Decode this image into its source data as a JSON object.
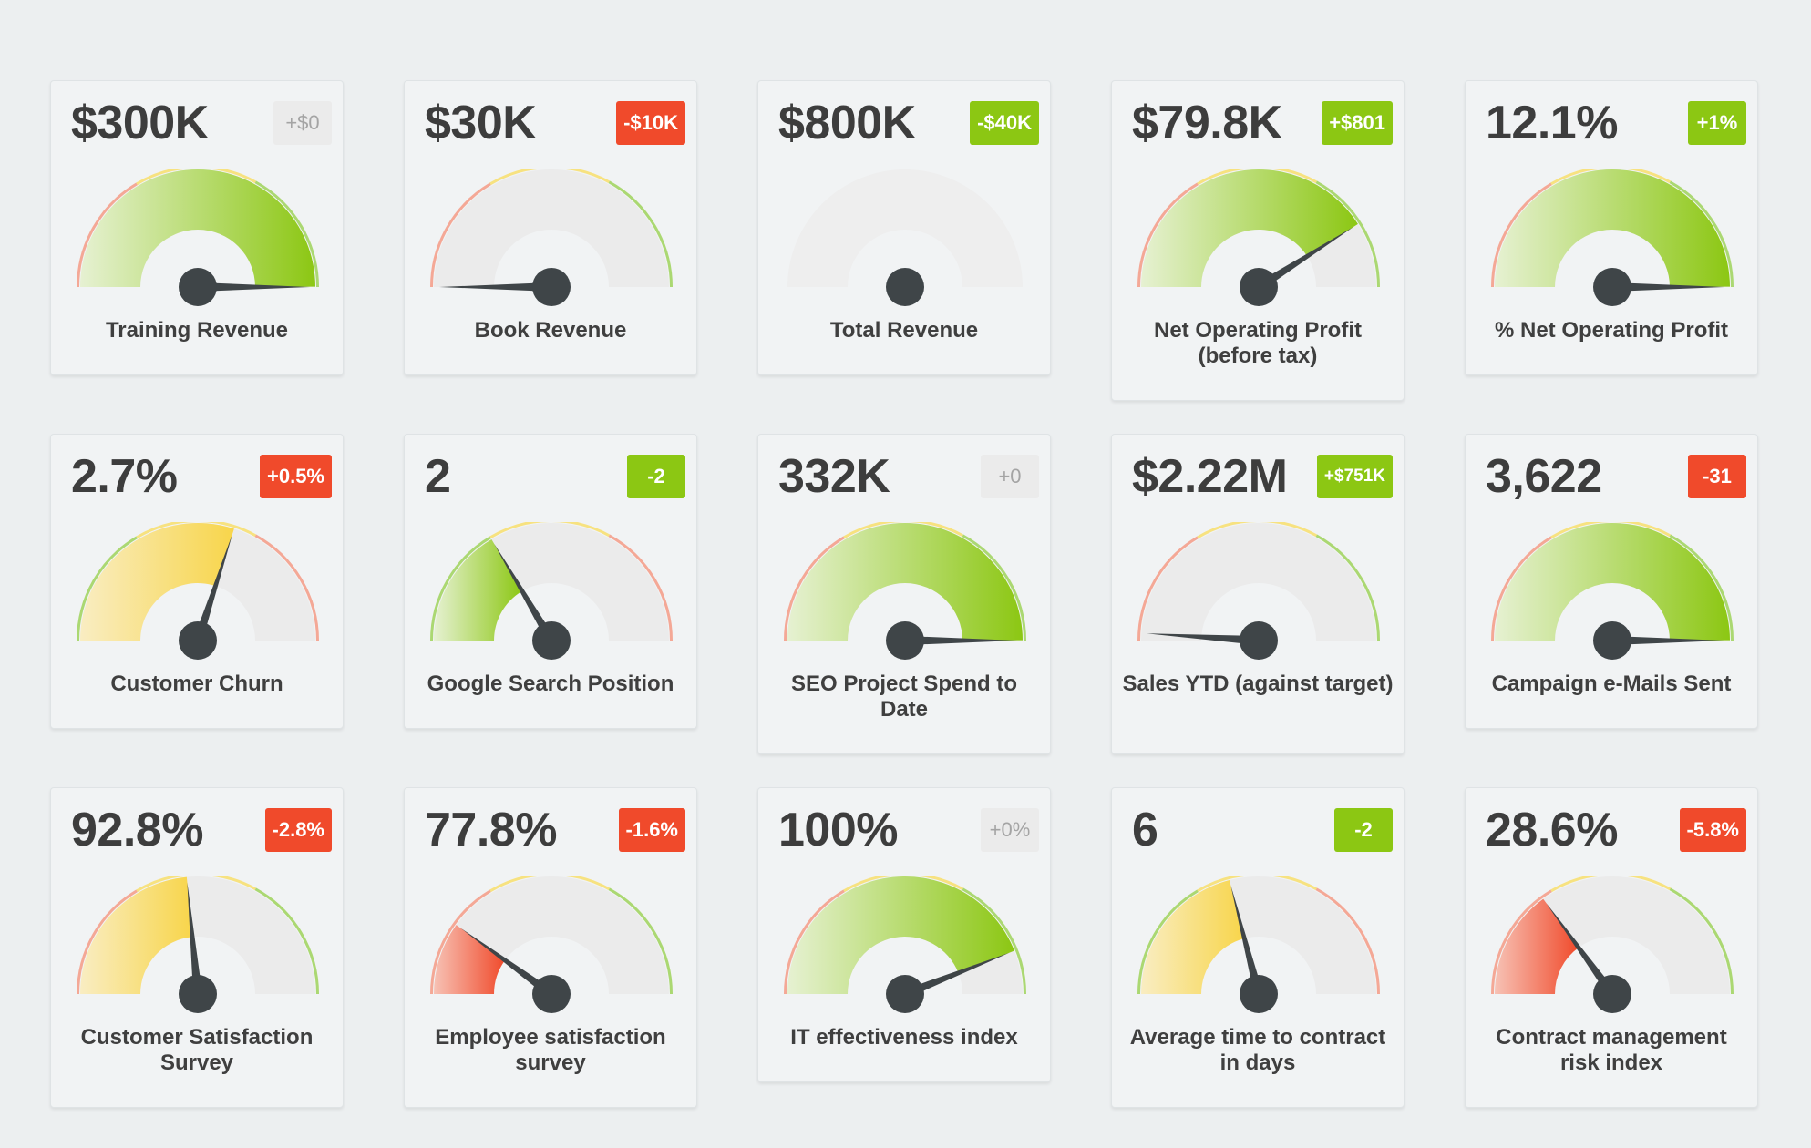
{
  "colors": {
    "green": "#8cc713",
    "red": "#f04a2b",
    "yellow": "#f8d94f",
    "track": "#ebebeb",
    "needle": "#3f4548"
  },
  "cards": [
    {
      "value": "$300K",
      "badge": "+$0",
      "badge_status": "neutral",
      "label": "Training Revenue",
      "level": 1.0,
      "fill": "green",
      "scale": "normal"
    },
    {
      "value": "$30K",
      "badge": "-$10K",
      "badge_status": "down",
      "label": "Book Revenue",
      "level": 0.0,
      "fill": "none",
      "scale": "normal"
    },
    {
      "value": "$800K",
      "badge": "-$40K",
      "badge_status": "up",
      "label": "Total Revenue",
      "level": null,
      "fill": "none",
      "scale": "disabled"
    },
    {
      "value": "$79.8K",
      "badge": "+$801",
      "badge_status": "up",
      "label": "Net Operating Profit (before tax)",
      "level": 0.82,
      "fill": "green",
      "scale": "normal"
    },
    {
      "value": "12.1%",
      "badge": "+1%",
      "badge_status": "up",
      "label": "% Net Operating Profit",
      "level": 1.0,
      "fill": "green",
      "scale": "normal"
    },
    {
      "value": "2.7%",
      "badge": "+0.5%",
      "badge_status": "down",
      "label": "Customer Churn",
      "level": 0.6,
      "fill": "yellow",
      "scale": "reverse"
    },
    {
      "value": "2",
      "badge": "-2",
      "badge_status": "up",
      "label": "Google Search Position",
      "level": 0.33,
      "fill": "green",
      "scale": "reverse"
    },
    {
      "value": "332K",
      "badge": "+0",
      "badge_status": "neutral",
      "label": "SEO Project Spend to Date",
      "level": 1.0,
      "fill": "green",
      "scale": "normal"
    },
    {
      "value": "$2.22M",
      "badge": "+$751K",
      "badge_status": "up",
      "label": "Sales YTD (against target)",
      "level": 0.02,
      "fill": "none",
      "scale": "normal"
    },
    {
      "value": "3,622",
      "badge": "-31",
      "badge_status": "down",
      "label": "Campaign e-Mails Sent",
      "level": 1.0,
      "fill": "green",
      "scale": "normal"
    },
    {
      "value": "92.8%",
      "badge": "-2.8%",
      "badge_status": "down",
      "label": "Customer Satisfaction Survey",
      "level": 0.47,
      "fill": "yellow",
      "scale": "normal"
    },
    {
      "value": "77.8%",
      "badge": "-1.6%",
      "badge_status": "down",
      "label": "Employee satisfaction survey",
      "level": 0.2,
      "fill": "red",
      "scale": "normal"
    },
    {
      "value": "100%",
      "badge": "+0%",
      "badge_status": "neutral",
      "label": "IT effectiveness index",
      "level": 0.88,
      "fill": "green",
      "scale": "normal"
    },
    {
      "value": "6",
      "badge": "-2",
      "badge_status": "up",
      "label": "Average time to contract in days",
      "level": 0.42,
      "fill": "yellow",
      "scale": "reverse"
    },
    {
      "value": "28.6%",
      "badge": "-5.8%",
      "badge_status": "down",
      "label": "Contract management risk index",
      "level": 0.3,
      "fill": "red",
      "scale": "normal"
    }
  ]
}
